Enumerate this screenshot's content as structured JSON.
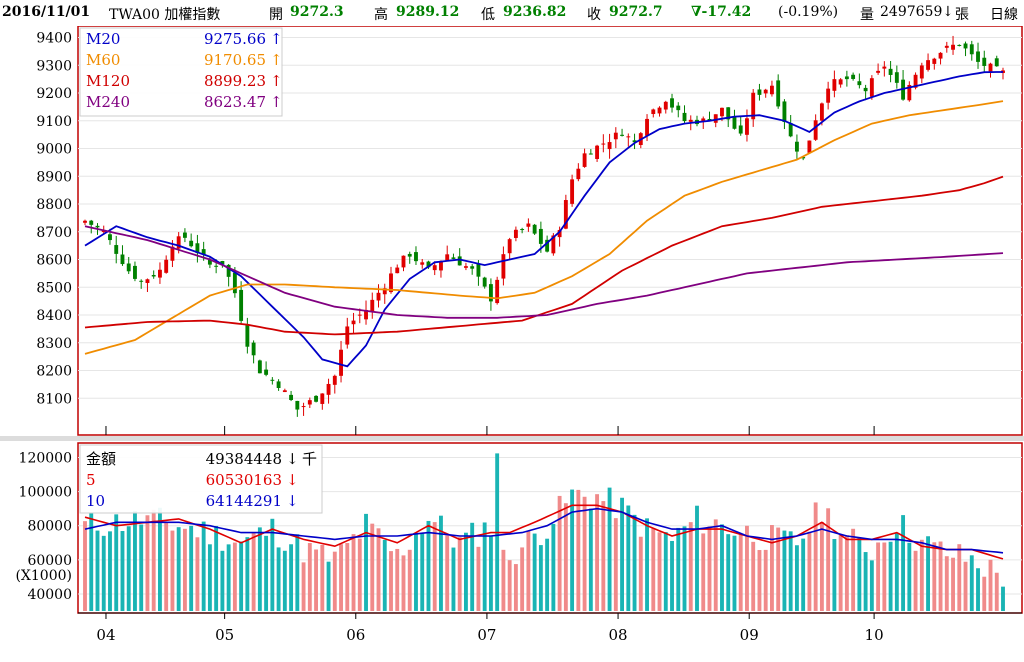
{
  "header": {
    "date": "2016/11/01",
    "symbol": "TWA00 加權指數",
    "open_label": "開",
    "open": "9272.3",
    "high_label": "高",
    "high": "9289.12",
    "low_label": "低",
    "low": "9236.82",
    "close_label": "收",
    "close": "9272.7",
    "change": "∇-17.42",
    "change_pct": "(-0.19%)",
    "volume_label": "量",
    "volume": "2497659",
    "volume_arrow": "↓",
    "volume_unit": "張",
    "period": "日線"
  },
  "colors": {
    "up": "#e00000",
    "down": "#008000",
    "ma20": "#0000c8",
    "ma60": "#f08c00",
    "ma120": "#d00000",
    "ma240": "#800080",
    "vol_up": "#f08a8a",
    "vol_down": "#1ab4b4",
    "vol_ma5": "#e00000",
    "vol_ma10": "#0000c8",
    "frame": "#c00000"
  },
  "price_legend": [
    {
      "name": "M20",
      "value": "9275.66",
      "arrow": "↑",
      "color": "#0000c8"
    },
    {
      "name": "M60",
      "value": "9170.65",
      "arrow": "↑",
      "color": "#f08c00"
    },
    {
      "name": "M120",
      "value": "8899.23",
      "arrow": "↑",
      "color": "#d00000"
    },
    {
      "name": "M240",
      "value": "8623.47",
      "arrow": "↑",
      "color": "#800080"
    }
  ],
  "volume_legend": [
    {
      "name": "金額",
      "value": "49384448",
      "arrow": "↓",
      "unit": "千",
      "color": "#000000"
    },
    {
      "name": "5",
      "value": "60530163",
      "arrow": "↓",
      "unit": "",
      "color": "#e00000"
    },
    {
      "name": "10",
      "value": "64144291",
      "arrow": "↓",
      "unit": "",
      "color": "#0000c8"
    }
  ],
  "chart_data": [
    {
      "type": "candlestick",
      "ylim": [
        8000,
        9420
      ],
      "yticks": [
        "9400",
        "9300",
        "9200",
        "9100",
        "9000",
        "8900",
        "8800",
        "8700",
        "8600",
        "8500",
        "8400",
        "8300",
        "8200",
        "8100"
      ],
      "ytick_values": [
        9400,
        9300,
        9200,
        9100,
        9000,
        8900,
        8800,
        8700,
        8600,
        8500,
        8400,
        8300,
        8200,
        8100
      ],
      "x_month_labels": [
        "04",
        "05",
        "06",
        "07",
        "08",
        "09",
        "10"
      ],
      "x_month_start_day": [
        4,
        23,
        44,
        65,
        86,
        107,
        127
      ],
      "total_days": 148,
      "close_anchors": [
        [
          0,
          8740
        ],
        [
          3,
          8700
        ],
        [
          7,
          8560
        ],
        [
          9,
          8520
        ],
        [
          12,
          8560
        ],
        [
          14,
          8660
        ],
        [
          16,
          8680
        ],
        [
          18,
          8630
        ],
        [
          20,
          8580
        ],
        [
          22,
          8590
        ],
        [
          24,
          8480
        ],
        [
          26,
          8300
        ],
        [
          28,
          8200
        ],
        [
          31,
          8150
        ],
        [
          34,
          8060
        ],
        [
          37,
          8100
        ],
        [
          40,
          8180
        ],
        [
          42,
          8360
        ],
        [
          45,
          8420
        ],
        [
          48,
          8510
        ],
        [
          50,
          8580
        ],
        [
          52,
          8620
        ],
        [
          55,
          8560
        ],
        [
          58,
          8620
        ],
        [
          62,
          8560
        ],
        [
          65,
          8460
        ],
        [
          68,
          8680
        ],
        [
          71,
          8720
        ],
        [
          74,
          8630
        ],
        [
          76,
          8720
        ],
        [
          78,
          8890
        ],
        [
          80,
          8980
        ],
        [
          83,
          9020
        ],
        [
          86,
          9060
        ],
        [
          88,
          9020
        ],
        [
          90,
          9120
        ],
        [
          93,
          9180
        ],
        [
          96,
          9100
        ],
        [
          99,
          9100
        ],
        [
          102,
          9140
        ],
        [
          105,
          9040
        ],
        [
          107,
          9190
        ],
        [
          110,
          9230
        ],
        [
          113,
          9040
        ],
        [
          115,
          8960
        ],
        [
          117,
          9110
        ],
        [
          119,
          9230
        ],
        [
          122,
          9250
        ],
        [
          125,
          9210
        ],
        [
          128,
          9300
        ],
        [
          131,
          9190
        ],
        [
          134,
          9310
        ],
        [
          137,
          9350
        ],
        [
          140,
          9380
        ],
        [
          143,
          9310
        ],
        [
          147,
          9273
        ]
      ],
      "ma20_anchors": [
        [
          0,
          8650
        ],
        [
          5,
          8720
        ],
        [
          10,
          8680
        ],
        [
          15,
          8650
        ],
        [
          20,
          8610
        ],
        [
          25,
          8540
        ],
        [
          30,
          8430
        ],
        [
          35,
          8320
        ],
        [
          38,
          8240
        ],
        [
          42,
          8215
        ],
        [
          45,
          8290
        ],
        [
          48,
          8420
        ],
        [
          52,
          8530
        ],
        [
          56,
          8590
        ],
        [
          60,
          8600
        ],
        [
          64,
          8580
        ],
        [
          68,
          8600
        ],
        [
          72,
          8620
        ],
        [
          76,
          8700
        ],
        [
          80,
          8830
        ],
        [
          84,
          8950
        ],
        [
          88,
          9020
        ],
        [
          92,
          9070
        ],
        [
          96,
          9090
        ],
        [
          100,
          9100
        ],
        [
          104,
          9115
        ],
        [
          108,
          9120
        ],
        [
          112,
          9100
        ],
        [
          116,
          9060
        ],
        [
          120,
          9130
        ],
        [
          124,
          9170
        ],
        [
          128,
          9200
        ],
        [
          132,
          9220
        ],
        [
          136,
          9240
        ],
        [
          140,
          9260
        ],
        [
          144,
          9275
        ],
        [
          147,
          9276
        ]
      ],
      "ma60_anchors": [
        [
          0,
          8260
        ],
        [
          8,
          8310
        ],
        [
          14,
          8390
        ],
        [
          20,
          8470
        ],
        [
          26,
          8510
        ],
        [
          32,
          8510
        ],
        [
          40,
          8500
        ],
        [
          50,
          8490
        ],
        [
          60,
          8470
        ],
        [
          66,
          8460
        ],
        [
          72,
          8480
        ],
        [
          78,
          8540
        ],
        [
          84,
          8620
        ],
        [
          90,
          8740
        ],
        [
          96,
          8830
        ],
        [
          102,
          8880
        ],
        [
          108,
          8920
        ],
        [
          114,
          8960
        ],
        [
          120,
          9030
        ],
        [
          126,
          9090
        ],
        [
          132,
          9120
        ],
        [
          138,
          9140
        ],
        [
          144,
          9160
        ],
        [
          147,
          9171
        ]
      ],
      "ma120_anchors": [
        [
          0,
          8355
        ],
        [
          10,
          8375
        ],
        [
          20,
          8380
        ],
        [
          26,
          8365
        ],
        [
          32,
          8340
        ],
        [
          40,
          8330
        ],
        [
          50,
          8340
        ],
        [
          60,
          8360
        ],
        [
          70,
          8380
        ],
        [
          78,
          8440
        ],
        [
          86,
          8560
        ],
        [
          94,
          8650
        ],
        [
          102,
          8720
        ],
        [
          110,
          8750
        ],
        [
          118,
          8790
        ],
        [
          126,
          8810
        ],
        [
          134,
          8830
        ],
        [
          140,
          8850
        ],
        [
          144,
          8875
        ],
        [
          147,
          8899
        ]
      ],
      "ma240_anchors": [
        [
          0,
          8720
        ],
        [
          10,
          8670
        ],
        [
          20,
          8600
        ],
        [
          26,
          8540
        ],
        [
          32,
          8480
        ],
        [
          40,
          8430
        ],
        [
          50,
          8400
        ],
        [
          58,
          8390
        ],
        [
          66,
          8390
        ],
        [
          74,
          8400
        ],
        [
          82,
          8440
        ],
        [
          90,
          8470
        ],
        [
          98,
          8510
        ],
        [
          106,
          8550
        ],
        [
          114,
          8570
        ],
        [
          122,
          8590
        ],
        [
          130,
          8600
        ],
        [
          138,
          8610
        ],
        [
          147,
          8623
        ]
      ]
    },
    {
      "type": "bar",
      "ylim": [
        30000,
        125000
      ],
      "y_unit": "(X1000)",
      "yticks": [
        "120000",
        "100000",
        "80000",
        "60000",
        "40000"
      ],
      "ytick_values": [
        120000,
        100000,
        80000,
        60000,
        40000
      ],
      "amount_anchors": [
        [
          0,
          80000
        ],
        [
          5,
          82000
        ],
        [
          10,
          84000
        ],
        [
          15,
          80000
        ],
        [
          20,
          76000
        ],
        [
          25,
          70000
        ],
        [
          30,
          78000
        ],
        [
          35,
          66000
        ],
        [
          40,
          60000
        ],
        [
          45,
          80000
        ],
        [
          50,
          62000
        ],
        [
          55,
          85000
        ],
        [
          60,
          70000
        ],
        [
          65,
          80000
        ],
        [
          66,
          125000
        ],
        [
          67,
          60000
        ],
        [
          70,
          68000
        ],
        [
          74,
          80000
        ],
        [
          78,
          98000
        ],
        [
          82,
          97000
        ],
        [
          86,
          90000
        ],
        [
          90,
          78000
        ],
        [
          94,
          72000
        ],
        [
          98,
          84000
        ],
        [
          102,
          80000
        ],
        [
          106,
          76000
        ],
        [
          110,
          72000
        ],
        [
          114,
          70000
        ],
        [
          118,
          90000
        ],
        [
          122,
          72000
        ],
        [
          126,
          66000
        ],
        [
          130,
          82000
        ],
        [
          134,
          70000
        ],
        [
          138,
          64000
        ],
        [
          142,
          60000
        ],
        [
          147,
          50000
        ]
      ],
      "ma5_anchors": [
        [
          0,
          85000
        ],
        [
          5,
          80000
        ],
        [
          10,
          82000
        ],
        [
          15,
          84000
        ],
        [
          20,
          78000
        ],
        [
          25,
          70000
        ],
        [
          30,
          78000
        ],
        [
          35,
          72000
        ],
        [
          40,
          68000
        ],
        [
          45,
          76000
        ],
        [
          50,
          70000
        ],
        [
          55,
          80000
        ],
        [
          60,
          72000
        ],
        [
          65,
          76000
        ],
        [
          68,
          76000
        ],
        [
          72,
          82000
        ],
        [
          78,
          92000
        ],
        [
          82,
          92000
        ],
        [
          86,
          88000
        ],
        [
          90,
          80000
        ],
        [
          94,
          74000
        ],
        [
          98,
          78000
        ],
        [
          102,
          78000
        ],
        [
          106,
          74000
        ],
        [
          110,
          70000
        ],
        [
          114,
          74000
        ],
        [
          118,
          82000
        ],
        [
          122,
          72000
        ],
        [
          126,
          72000
        ],
        [
          130,
          76000
        ],
        [
          134,
          68000
        ],
        [
          138,
          66000
        ],
        [
          142,
          66000
        ],
        [
          147,
          60530
        ]
      ],
      "ma10_anchors": [
        [
          0,
          78000
        ],
        [
          5,
          82000
        ],
        [
          10,
          82000
        ],
        [
          15,
          82000
        ],
        [
          20,
          80000
        ],
        [
          25,
          76000
        ],
        [
          30,
          76000
        ],
        [
          35,
          74000
        ],
        [
          40,
          72000
        ],
        [
          45,
          74000
        ],
        [
          50,
          74000
        ],
        [
          55,
          76000
        ],
        [
          60,
          74000
        ],
        [
          65,
          74000
        ],
        [
          70,
          76000
        ],
        [
          74,
          80000
        ],
        [
          78,
          88000
        ],
        [
          82,
          90000
        ],
        [
          86,
          88000
        ],
        [
          90,
          82000
        ],
        [
          94,
          78000
        ],
        [
          98,
          78000
        ],
        [
          102,
          80000
        ],
        [
          106,
          74000
        ],
        [
          110,
          72000
        ],
        [
          114,
          74000
        ],
        [
          118,
          78000
        ],
        [
          122,
          74000
        ],
        [
          126,
          72000
        ],
        [
          130,
          72000
        ],
        [
          134,
          70000
        ],
        [
          138,
          66000
        ],
        [
          142,
          66000
        ],
        [
          147,
          64144
        ]
      ]
    }
  ]
}
